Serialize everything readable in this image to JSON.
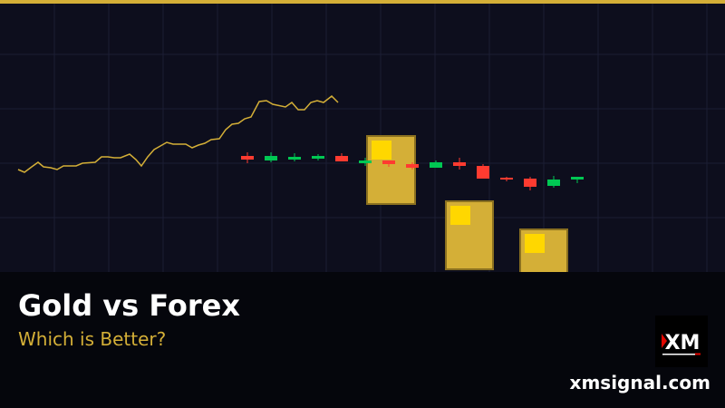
{
  "banner": {
    "title": "Gold vs Forex",
    "subtitle": "Which is Better?",
    "website": "xmsignal.com",
    "logo_text": "XM"
  },
  "colors": {
    "background": "#0d0e1d",
    "accent_gold": "#d4af37",
    "bullish": "#00c853",
    "bearish": "#ff3b30",
    "footer": "#05060c"
  }
}
